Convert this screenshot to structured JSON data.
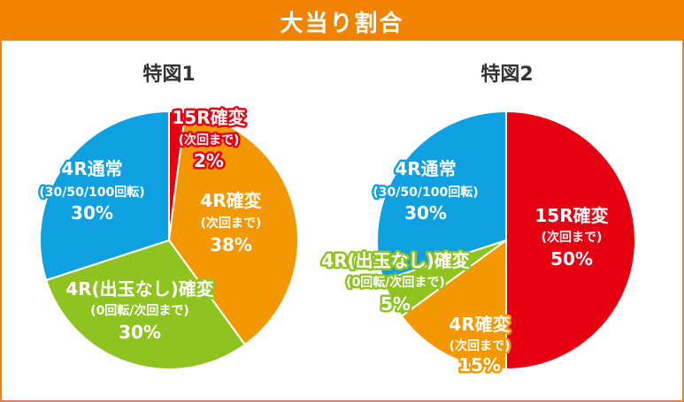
{
  "header": {
    "title": "大当り割合"
  },
  "colors": {
    "accent": "#f08300",
    "red": "#e60012",
    "orange": "#f39800",
    "green": "#8fc31f",
    "blue": "#0ea0e0"
  },
  "chart_data": [
    {
      "type": "pie",
      "title": "特図1",
      "slices": [
        {
          "label": "15R確変",
          "sub": "(次回まで)",
          "value": 2,
          "pct": "2%",
          "color": "#e60012"
        },
        {
          "label": "4R確変",
          "sub": "(次回まで)",
          "value": 38,
          "pct": "38%",
          "color": "#f39800"
        },
        {
          "label": "4R(出玉なし)確変",
          "sub": "(0回転/次回まで)",
          "value": 30,
          "pct": "30%",
          "color": "#8fc31f"
        },
        {
          "label": "4R通常",
          "sub": "(30/50/100回転)",
          "value": 30,
          "pct": "30%",
          "color": "#0ea0e0"
        }
      ]
    },
    {
      "type": "pie",
      "title": "特図2",
      "slices": [
        {
          "label": "15R確変",
          "sub": "(次回まで)",
          "value": 50,
          "pct": "50%",
          "color": "#e60012"
        },
        {
          "label": "4R確変",
          "sub": "(次回まで)",
          "value": 15,
          "pct": "15%",
          "color": "#f39800"
        },
        {
          "label": "4R(出玉なし)確変",
          "sub": "(0回転/次回まで)",
          "value": 5,
          "pct": "5%",
          "color": "#8fc31f"
        },
        {
          "label": "4R通常",
          "sub": "(30/50/100回転)",
          "value": 30,
          "pct": "30%",
          "color": "#0ea0e0"
        }
      ]
    }
  ]
}
